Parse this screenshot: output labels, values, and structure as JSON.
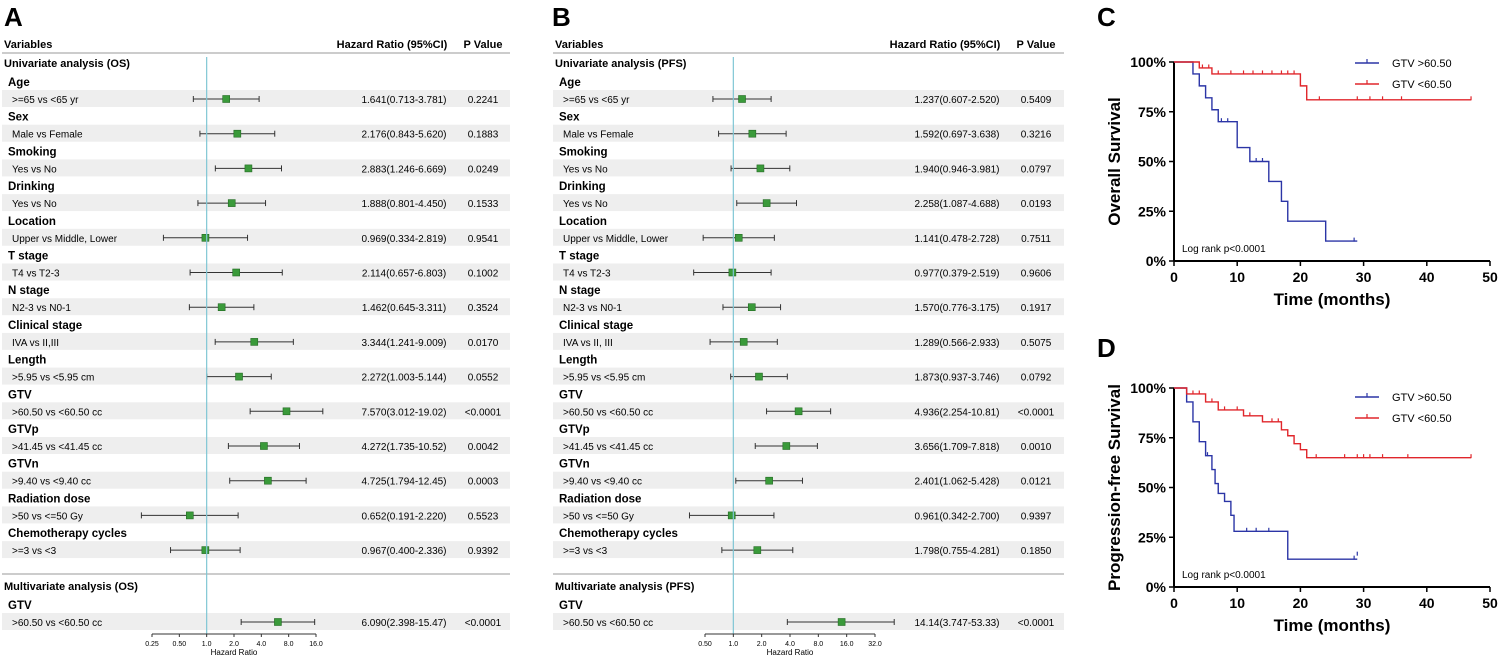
{
  "panels": {
    "A": {
      "letter": "A"
    },
    "B": {
      "letter": "B"
    },
    "C": {
      "letter": "C"
    },
    "D": {
      "letter": "D"
    }
  },
  "chart_data": [
    {
      "id": "A",
      "type": "forest",
      "headers": {
        "variables": "Variables",
        "hr": "Hazard Ratio (95%CI)",
        "p": "P Value"
      },
      "section1": "Univariate analysis (OS)",
      "section2": "Multivariate analysis (OS)",
      "xlabel": "Hazard Ratio",
      "ticks": [
        0.25,
        0.5,
        1.0,
        2.0,
        4.0,
        8.0,
        16.0
      ],
      "tick_labels": [
        "0.25",
        "0.50",
        "1.0",
        "2.0",
        "4.0",
        "8.0",
        "16.0"
      ],
      "xlim": [
        0.25,
        16.0
      ],
      "univariate": [
        {
          "group": "Age",
          "label": ">=65 vs <65 yr",
          "hr": 1.641,
          "lo": 0.713,
          "hi": 3.781,
          "hr_text": "1.641(0.713-3.781)",
          "p": "0.2241"
        },
        {
          "group": "Sex",
          "label": "Male vs Female",
          "hr": 2.176,
          "lo": 0.843,
          "hi": 5.62,
          "hr_text": "2.176(0.843-5.620)",
          "p": "0.1883"
        },
        {
          "group": "Smoking",
          "label": "Yes vs No",
          "hr": 2.883,
          "lo": 1.246,
          "hi": 6.669,
          "hr_text": "2.883(1.246-6.669)",
          "p": "0.0249"
        },
        {
          "group": "Drinking",
          "label": "Yes vs No",
          "hr": 1.888,
          "lo": 0.801,
          "hi": 4.45,
          "hr_text": "1.888(0.801-4.450)",
          "p": "0.1533"
        },
        {
          "group": "Location",
          "label": "Upper vs Middle, Lower",
          "hr": 0.969,
          "lo": 0.334,
          "hi": 2.819,
          "hr_text": "0.969(0.334-2.819)",
          "p": "0.9541"
        },
        {
          "group": "T stage",
          "label": "T4 vs T2-3",
          "hr": 2.114,
          "lo": 0.657,
          "hi": 6.803,
          "hr_text": "2.114(0.657-6.803)",
          "p": "0.1002"
        },
        {
          "group": "N stage",
          "label": "N2-3 vs N0-1",
          "hr": 1.462,
          "lo": 0.645,
          "hi": 3.311,
          "hr_text": "1.462(0.645-3.311)",
          "p": "0.3524"
        },
        {
          "group": "Clinical stage",
          "label": "IVA vs II,III",
          "hr": 3.344,
          "lo": 1.241,
          "hi": 9.009,
          "hr_text": "3.344(1.241-9.009)",
          "p": "0.0170"
        },
        {
          "group": "Length",
          "label": ">5.95 vs <5.95 cm",
          "hr": 2.272,
          "lo": 1.003,
          "hi": 5.144,
          "hr_text": "2.272(1.003-5.144)",
          "p": "0.0552"
        },
        {
          "group": "GTV",
          "label": ">60.50 vs <60.50 cc",
          "hr": 7.57,
          "lo": 3.012,
          "hi": 19.02,
          "hr_text": "7.570(3.012-19.02)",
          "p": "<0.0001"
        },
        {
          "group": "GTVp",
          "label": ">41.45 vs <41.45 cc",
          "hr": 4.272,
          "lo": 1.735,
          "hi": 10.52,
          "hr_text": "4.272(1.735-10.52)",
          "p": "0.0042"
        },
        {
          "group": "GTVn",
          "label": ">9.40 vs <9.40 cc",
          "hr": 4.725,
          "lo": 1.794,
          "hi": 12.45,
          "hr_text": "4.725(1.794-12.45)",
          "p": "0.0003"
        },
        {
          "group": "Radiation dose",
          "label": ">50 vs <=50 Gy",
          "hr": 0.652,
          "lo": 0.191,
          "hi": 2.22,
          "hr_text": "0.652(0.191-2.220)",
          "p": "0.5523"
        },
        {
          "group": "Chemotherapy cycles",
          "label": ">=3 vs <3",
          "hr": 0.967,
          "lo": 0.4,
          "hi": 2.336,
          "hr_text": "0.967(0.400-2.336)",
          "p": "0.9392"
        }
      ],
      "multivariate": [
        {
          "group": "GTV",
          "label": ">60.50 vs <60.50 cc",
          "hr": 6.09,
          "lo": 2.398,
          "hi": 15.47,
          "hr_text": "6.090(2.398-15.47)",
          "p": "<0.0001"
        }
      ]
    },
    {
      "id": "B",
      "type": "forest",
      "headers": {
        "variables": "Variables",
        "hr": "Hazard Ratio (95%CI)",
        "p": "P Value"
      },
      "section1": "Univariate analysis (PFS)",
      "section2": "Multivariate analysis (PFS)",
      "xlabel": "Hazard Ratio",
      "ticks": [
        0.5,
        1.0,
        2.0,
        4.0,
        8.0,
        16.0,
        32.0
      ],
      "tick_labels": [
        "0.50",
        "1.0",
        "2.0",
        "4.0",
        "8.0",
        "16.0",
        "32.0"
      ],
      "xlim": [
        0.5,
        32.0
      ],
      "univariate": [
        {
          "group": "Age",
          "label": ">=65 vs <65 yr",
          "hr": 1.237,
          "lo": 0.607,
          "hi": 2.52,
          "hr_text": "1.237(0.607-2.520)",
          "p": "0.5409"
        },
        {
          "group": "Sex",
          "label": "Male vs Female",
          "hr": 1.592,
          "lo": 0.697,
          "hi": 3.638,
          "hr_text": "1.592(0.697-3.638)",
          "p": "0.3216"
        },
        {
          "group": "Smoking",
          "label": "Yes vs No",
          "hr": 1.94,
          "lo": 0.946,
          "hi": 3.981,
          "hr_text": "1.940(0.946-3.981)",
          "p": "0.0797"
        },
        {
          "group": "Drinking",
          "label": "Yes vs No",
          "hr": 2.258,
          "lo": 1.087,
          "hi": 4.688,
          "hr_text": "2.258(1.087-4.688)",
          "p": "0.0193"
        },
        {
          "group": "Location",
          "label": "Upper vs Middle, Lower",
          "hr": 1.141,
          "lo": 0.478,
          "hi": 2.728,
          "hr_text": "1.141(0.478-2.728)",
          "p": "0.7511"
        },
        {
          "group": "T stage",
          "label": "T4 vs T2-3",
          "hr": 0.977,
          "lo": 0.379,
          "hi": 2.519,
          "hr_text": "0.977(0.379-2.519)",
          "p": "0.9606"
        },
        {
          "group": "N stage",
          "label": "N2-3 vs N0-1",
          "hr": 1.57,
          "lo": 0.776,
          "hi": 3.175,
          "hr_text": "1.570(0.776-3.175)",
          "p": "0.1917"
        },
        {
          "group": "Clinical stage",
          "label": "IVA vs II, III",
          "hr": 1.289,
          "lo": 0.566,
          "hi": 2.933,
          "hr_text": "1.289(0.566-2.933)",
          "p": "0.5075"
        },
        {
          "group": "Length",
          "label": ">5.95 vs <5.95 cm",
          "hr": 1.873,
          "lo": 0.937,
          "hi": 3.746,
          "hr_text": "1.873(0.937-3.746)",
          "p": "0.0792"
        },
        {
          "group": "GTV",
          "label": ">60.50 vs <60.50 cc",
          "hr": 4.936,
          "lo": 2.254,
          "hi": 10.81,
          "hr_text": "4.936(2.254-10.81)",
          "p": "<0.0001"
        },
        {
          "group": "GTVp",
          "label": ">41.45 vs <41.45 cc",
          "hr": 3.656,
          "lo": 1.709,
          "hi": 7.818,
          "hr_text": "3.656(1.709-7.818)",
          "p": "0.0010"
        },
        {
          "group": "GTVn",
          "label": ">9.40 vs <9.40 cc",
          "hr": 2.401,
          "lo": 1.062,
          "hi": 5.428,
          "hr_text": "2.401(1.062-5.428)",
          "p": "0.0121"
        },
        {
          "group": "Radiation dose",
          "label": ">50 vs <=50 Gy",
          "hr": 0.961,
          "lo": 0.342,
          "hi": 2.7,
          "hr_text": "0.961(0.342-2.700)",
          "p": "0.9397"
        },
        {
          "group": "Chemotherapy cycles",
          "label": ">=3 vs <3",
          "hr": 1.798,
          "lo": 0.755,
          "hi": 4.281,
          "hr_text": "1.798(0.755-4.281)",
          "p": "0.1850"
        }
      ],
      "multivariate": [
        {
          "group": "GTV",
          "label": ">60.50 vs <60.50 cc",
          "hr": 14.14,
          "lo": 3.747,
          "hi": 53.33,
          "hr_text": "14.14(3.747-53.33)",
          "p": "<0.0001"
        }
      ]
    },
    {
      "id": "C",
      "type": "line",
      "subtype": "kaplan-meier",
      "xlabel": "Time (months)",
      "ylabel": "Overall Survival",
      "xlim": [
        0,
        50
      ],
      "ylim": [
        0,
        100
      ],
      "xticks": [
        0,
        10,
        20,
        30,
        40,
        50
      ],
      "yticks": [
        0,
        25,
        50,
        75,
        100
      ],
      "ytick_labels": [
        "0%",
        "25%",
        "50%",
        "75%",
        "100%"
      ],
      "annotation": "Log rank p<0.0001",
      "legend_position": "top-right",
      "series": [
        {
          "name": "GTV >60.50",
          "color": "#2b35a6",
          "steps": [
            [
              0,
              100
            ],
            [
              3,
              94
            ],
            [
              4,
              88
            ],
            [
              5,
              82
            ],
            [
              6,
              76
            ],
            [
              7,
              70
            ],
            [
              10,
              57
            ],
            [
              12,
              50
            ],
            [
              15,
              40
            ],
            [
              17,
              30
            ],
            [
              18,
              20
            ],
            [
              24,
              10
            ],
            [
              29,
              10
            ]
          ],
          "censored": [
            [
              7.5,
              70
            ],
            [
              8.5,
              70
            ],
            [
              13,
              50
            ],
            [
              14,
              50
            ],
            [
              28.5,
              10
            ]
          ]
        },
        {
          "name": "GTV <60.50",
          "color": "#e0262b",
          "steps": [
            [
              0,
              100
            ],
            [
              4,
              97
            ],
            [
              6,
              94
            ],
            [
              20,
              88
            ],
            [
              21,
              81
            ],
            [
              47,
              81
            ]
          ],
          "censored": [
            [
              4.5,
              97
            ],
            [
              5.5,
              97
            ],
            [
              7,
              94
            ],
            [
              9,
              94
            ],
            [
              11,
              94
            ],
            [
              12.5,
              94
            ],
            [
              14,
              94
            ],
            [
              15.5,
              94
            ],
            [
              17,
              94
            ],
            [
              18,
              94
            ],
            [
              19,
              94
            ],
            [
              23,
              81
            ],
            [
              29,
              81
            ],
            [
              31,
              81
            ],
            [
              33,
              81
            ],
            [
              36,
              81
            ],
            [
              47,
              81
            ]
          ]
        }
      ]
    },
    {
      "id": "D",
      "type": "line",
      "subtype": "kaplan-meier",
      "xlabel": "Time (months)",
      "ylabel": "Progression-free Survival",
      "xlim": [
        0,
        50
      ],
      "ylim": [
        0,
        100
      ],
      "xticks": [
        0,
        10,
        20,
        30,
        40,
        50
      ],
      "yticks": [
        0,
        25,
        50,
        75,
        100
      ],
      "ytick_labels": [
        "0%",
        "25%",
        "50%",
        "75%",
        "100%"
      ],
      "annotation": "Log rank p<0.0001",
      "legend_position": "top-right",
      "series": [
        {
          "name": "GTV >60.50",
          "color": "#2b35a6",
          "steps": [
            [
              0,
              100
            ],
            [
              2,
              93
            ],
            [
              3,
              83
            ],
            [
              4,
              73
            ],
            [
              5,
              66
            ],
            [
              6,
              59
            ],
            [
              6.5,
              52
            ],
            [
              7,
              47
            ],
            [
              8,
              43
            ],
            [
              9,
              36
            ],
            [
              9.5,
              28
            ],
            [
              18,
              14
            ],
            [
              29,
              14
            ]
          ],
          "censored": [
            [
              5.3,
              66
            ],
            [
              11.5,
              28
            ],
            [
              13,
              28
            ],
            [
              15,
              28
            ],
            [
              28.5,
              14
            ],
            [
              29,
              16
            ]
          ]
        },
        {
          "name": "GTV <60.50",
          "color": "#e0262b",
          "steps": [
            [
              0,
              100
            ],
            [
              2,
              97
            ],
            [
              5,
              93
            ],
            [
              7,
              89
            ],
            [
              11,
              86
            ],
            [
              14,
              83
            ],
            [
              17,
              79
            ],
            [
              18,
              76
            ],
            [
              19,
              72
            ],
            [
              20,
              69
            ],
            [
              21,
              65
            ],
            [
              47,
              65
            ]
          ],
          "censored": [
            [
              3,
              97
            ],
            [
              4,
              97
            ],
            [
              6,
              93
            ],
            [
              8,
              89
            ],
            [
              10,
              89
            ],
            [
              12,
              86
            ],
            [
              15.5,
              83
            ],
            [
              16.5,
              83
            ],
            [
              22.5,
              65
            ],
            [
              27,
              65
            ],
            [
              29,
              65
            ],
            [
              30,
              65
            ],
            [
              31,
              65
            ],
            [
              33,
              65
            ],
            [
              37,
              65
            ],
            [
              47,
              65
            ]
          ]
        }
      ]
    }
  ]
}
